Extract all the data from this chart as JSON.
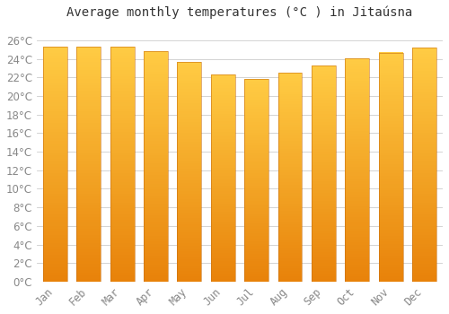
{
  "title": "Average monthly temperatures (°C ) in Jitaúsna",
  "months": [
    "Jan",
    "Feb",
    "Mar",
    "Apr",
    "May",
    "Jun",
    "Jul",
    "Aug",
    "Sep",
    "Oct",
    "Nov",
    "Dec"
  ],
  "values": [
    25.3,
    25.3,
    25.3,
    24.8,
    23.7,
    22.3,
    21.8,
    22.5,
    23.3,
    24.1,
    24.7,
    25.2
  ],
  "bar_color_bottom": "#E8820A",
  "bar_color_top": "#FFCC44",
  "bar_edge_color": "#C87010",
  "ylim": [
    0,
    27.5
  ],
  "yticks": [
    0,
    2,
    4,
    6,
    8,
    10,
    12,
    14,
    16,
    18,
    20,
    22,
    24,
    26
  ],
  "background_color": "#FFFFFF",
  "grid_color": "#CCCCCC",
  "title_fontsize": 10,
  "tick_fontsize": 8.5,
  "bar_width": 0.72,
  "tick_color": "#888888"
}
